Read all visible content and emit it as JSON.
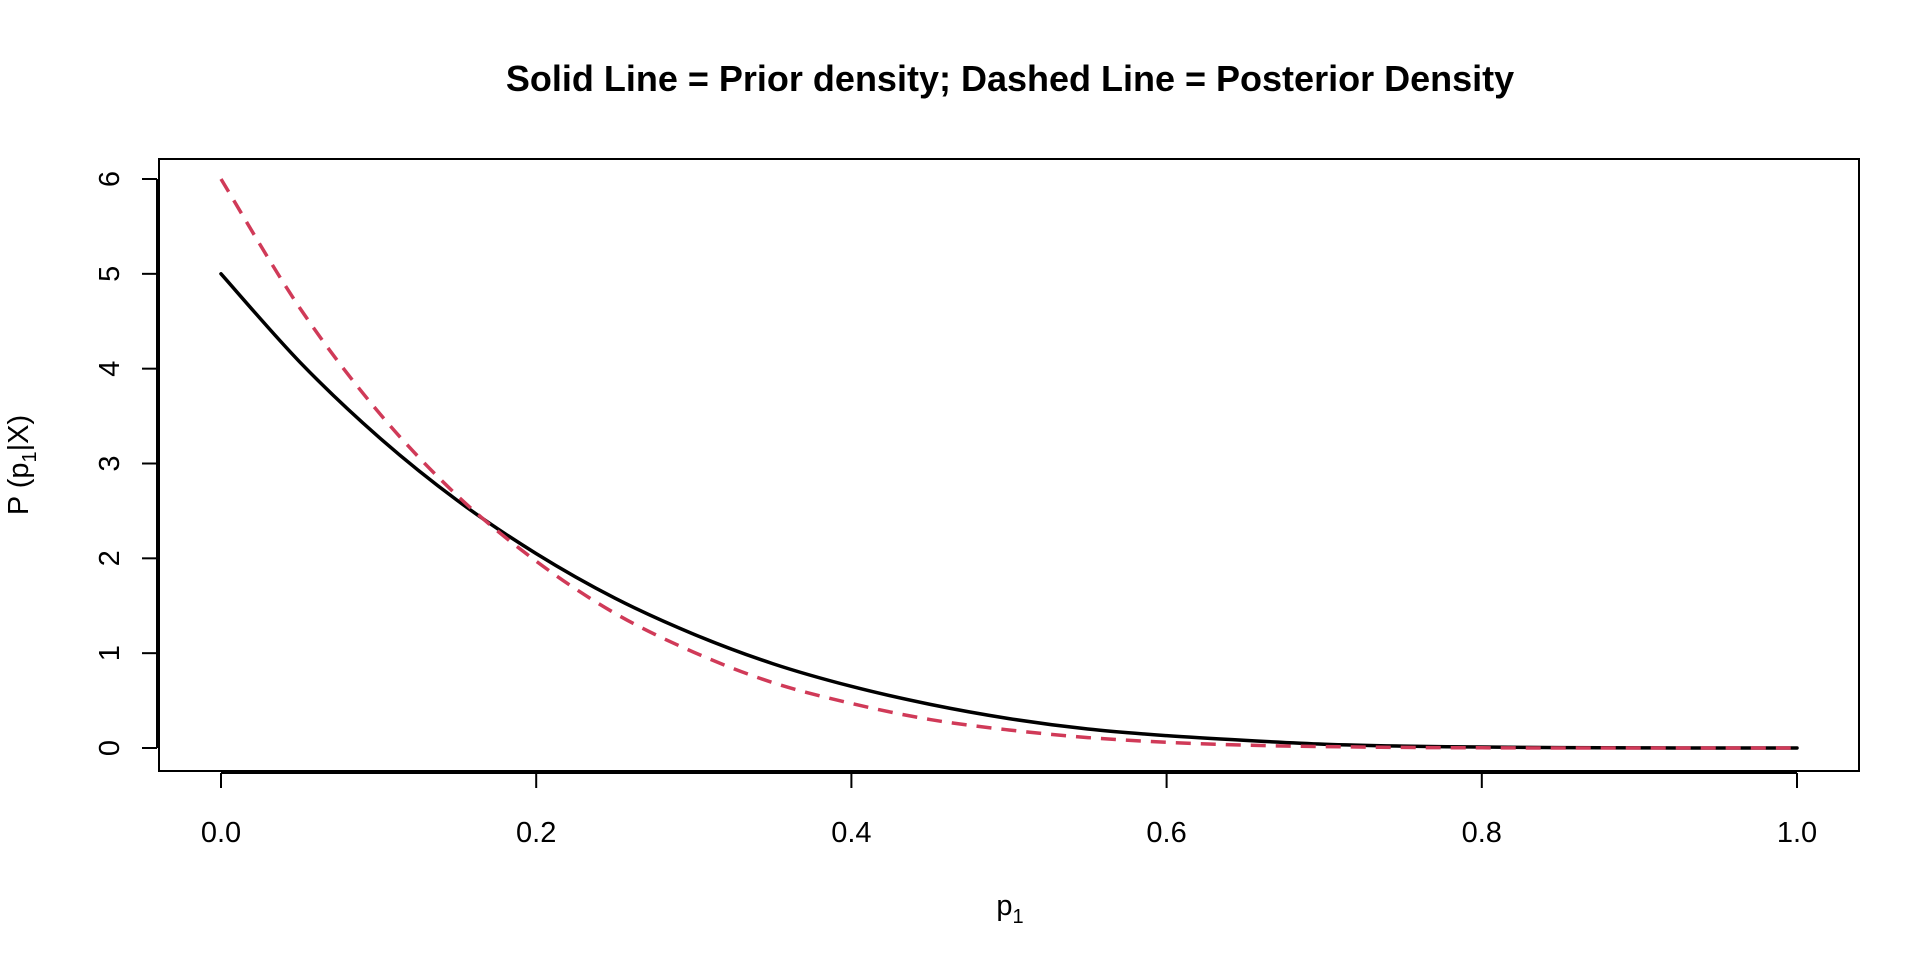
{
  "chart_data": {
    "type": "line",
    "title": "Solid Line = Prior density; Dashed Line = Posterior Density",
    "xlabel": {
      "main": "p",
      "sub": "1"
    },
    "ylabel": {
      "before": "P (p",
      "sub": "1",
      "after": "|X)"
    },
    "xlim": [
      0,
      1
    ],
    "ylim": [
      0,
      6
    ],
    "x_ticks": [
      0.0,
      0.2,
      0.4,
      0.6,
      0.8,
      1.0
    ],
    "x_tick_labels": [
      "0.0",
      "0.2",
      "0.4",
      "0.6",
      "0.8",
      "1.0"
    ],
    "y_ticks": [
      0,
      1,
      2,
      3,
      4,
      5,
      6
    ],
    "y_tick_labels": [
      "0",
      "1",
      "2",
      "3",
      "4",
      "5",
      "6"
    ],
    "grid": false,
    "legend": "none",
    "x": [
      0.0,
      0.05,
      0.1,
      0.15,
      0.2,
      0.25,
      0.3,
      0.35,
      0.4,
      0.45,
      0.5,
      0.55,
      0.6,
      0.65,
      0.7,
      0.75,
      0.8,
      0.85,
      0.9,
      0.95,
      1.0
    ],
    "series": [
      {
        "style": "solid",
        "color": "#000000",
        "values": [
          5.0,
          4.07,
          3.28,
          2.61,
          2.05,
          1.58,
          1.2,
          0.89,
          0.65,
          0.46,
          0.31,
          0.2,
          0.13,
          0.08,
          0.04,
          0.02,
          0.01,
          0.004,
          0.001,
          0.0,
          0.0
        ]
      },
      {
        "style": "dashed",
        "color": "#D03A58",
        "values": [
          6.0,
          4.64,
          3.54,
          2.66,
          1.97,
          1.42,
          1.01,
          0.69,
          0.47,
          0.3,
          0.19,
          0.11,
          0.06,
          0.03,
          0.015,
          0.006,
          0.002,
          0.0,
          0.0,
          0.0,
          0.0
        ]
      }
    ]
  }
}
